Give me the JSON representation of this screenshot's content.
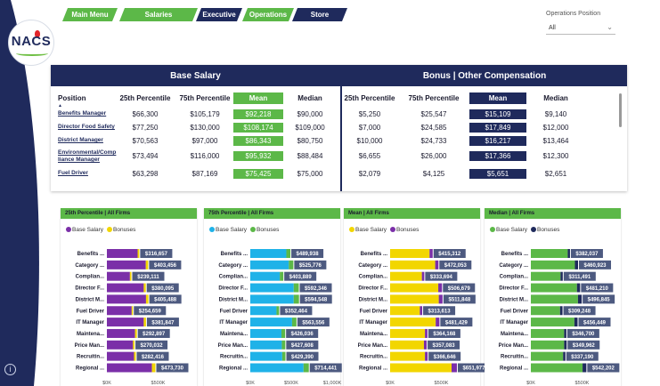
{
  "nav": [
    {
      "label": "Main Menu",
      "style": "green"
    },
    {
      "label": "Salaries",
      "style": "green"
    },
    {
      "label": "Executive",
      "style": "navy"
    },
    {
      "label": "Operations",
      "style": "green"
    },
    {
      "label": "Store",
      "style": "navy"
    }
  ],
  "logo": {
    "text": "NACS"
  },
  "filter": {
    "label": "Operations Position",
    "value": "All"
  },
  "table": {
    "base_title": "Base Salary",
    "bonus_title": "Bonus | Other Compensation",
    "position_header": "Position",
    "headers": [
      "25th Percentile",
      "75th Percentile",
      "Mean",
      "Median"
    ],
    "rows": [
      {
        "position": "Benefits Manager",
        "base": [
          "$66,300",
          "$105,179",
          "$92,218",
          "$90,000"
        ],
        "bonus": [
          "$5,250",
          "$25,547",
          "$15,109",
          "$9,140"
        ]
      },
      {
        "position": "Director Food Safety",
        "base": [
          "$77,250",
          "$130,000",
          "$108,174",
          "$109,000"
        ],
        "bonus": [
          "$7,000",
          "$24,585",
          "$17,849",
          "$12,000"
        ]
      },
      {
        "position": "District Manager",
        "base": [
          "$70,563",
          "$97,000",
          "$86,343",
          "$80,750"
        ],
        "bonus": [
          "$10,000",
          "$24,733",
          "$16,217",
          "$13,464"
        ]
      },
      {
        "position": "Environmental/Compliance Manager",
        "position_lines": [
          "Environmental/Comp",
          "liance Manager"
        ],
        "base": [
          "$73,494",
          "$116,000",
          "$95,932",
          "$88,484"
        ],
        "bonus": [
          "$6,655",
          "$26,000",
          "$17,366",
          "$12,300"
        ]
      },
      {
        "position": "Fuel Driver",
        "base": [
          "$63,298",
          "$87,169",
          "$75,425",
          "$75,000"
        ],
        "bonus": [
          "$2,079",
          "$4,125",
          "$5,651",
          "$2,651"
        ]
      }
    ]
  },
  "colors": {
    "navy": "#1f2a5c",
    "green": "#5cb848",
    "purple": "#7b2fa8",
    "yellow": "#f2d600",
    "cyan": "#1fb2e8",
    "label_bg": "#4d5a80"
  },
  "chart_data": [
    {
      "type": "bar",
      "title": "25th Percentile | All Firms",
      "legend": [
        "Base Salary",
        "Bonuses"
      ],
      "legend_colors": [
        "#7b2fa8",
        "#f2d600"
      ],
      "categories": [
        "Benefits ...",
        "Category ...",
        "Complian...",
        "Director F...",
        "District M...",
        "Fuel Driver",
        "IT Manager",
        "Maintena...",
        "Price Man...",
        "Recruitin...",
        "Regional ..."
      ],
      "series": [
        {
          "name": "Base Salary",
          "values": [
            300000,
            380000,
            225000,
            360000,
            382000,
            242000,
            360000,
            275000,
            255000,
            265000,
            440000
          ]
        },
        {
          "name": "Bonuses",
          "values": [
            16657,
            23456,
            14111,
            20095,
            23488,
            12659,
            21847,
            17897,
            15032,
            17416,
            33730
          ]
        }
      ],
      "labels": [
        "$316,657",
        "$403,456",
        "$239,111",
        "$380,095",
        "$405,488",
        "$254,659",
        "$381,847",
        "$292,897",
        "$270,032",
        "$282,416",
        "$473,730"
      ],
      "x_ticks": [
        "$0K",
        "$500K"
      ],
      "xlim": [
        0,
        800000
      ]
    },
    {
      "type": "bar",
      "title": "75th Percentile | All Firms",
      "legend": [
        "Base Salary",
        "Bonuses"
      ],
      "legend_colors": [
        "#1fb2e8",
        "#5cb848"
      ],
      "categories": [
        "Benefits ...",
        "Category ...",
        "Complian...",
        "Director F...",
        "District M...",
        "Fuel Driver",
        "IT Manager",
        "Maintena...",
        "Price Man...",
        "Recruitin...",
        "Regional ..."
      ],
      "series": [
        {
          "name": "Base Salary",
          "values": [
            440000,
            470000,
            360000,
            530000,
            530000,
            320000,
            510000,
            380000,
            385000,
            390000,
            650000
          ]
        },
        {
          "name": "Bonuses",
          "values": [
            49938,
            55776,
            43889,
            62346,
            64548,
            32464,
            53556,
            46036,
            42608,
            39390,
            64441
          ]
        }
      ],
      "labels": [
        "$489,938",
        "$525,776",
        "$403,889",
        "$592,346",
        "$594,548",
        "$352,464",
        "$563,556",
        "$426,036",
        "$427,608",
        "$429,390",
        "$714,441"
      ],
      "x_ticks": [
        "$0K",
        "$500K",
        "$1,000K"
      ],
      "xlim": [
        0,
        1000000
      ]
    },
    {
      "type": "bar",
      "title": "Mean | All Firms",
      "legend": [
        "Base Salary",
        "Bonuses"
      ],
      "legend_colors": [
        "#f2d600",
        "#7b2fa8"
      ],
      "categories": [
        "Benefits ...",
        "Category ...",
        "Complian...",
        "Director F...",
        "District M...",
        "Fuel Driver",
        "IT Manager",
        "Maintena...",
        "Price Man...",
        "Recruitin...",
        "Regional ..."
      ],
      "series": [
        {
          "name": "Base Salary",
          "values": [
            385000,
            440000,
            310000,
            470000,
            475000,
            290000,
            445000,
            340000,
            330000,
            340000,
            600000
          ]
        },
        {
          "name": "Bonuses",
          "values": [
            30312,
            32053,
            23694,
            36679,
            36847,
            23613,
            36429,
            24168,
            27083,
            26646,
            51977
          ]
        }
      ],
      "labels": [
        "$415,312",
        "$472,053",
        "$333,694",
        "$506,679",
        "$511,848",
        "$313,613",
        "$481,429",
        "$364,168",
        "$357,083",
        "$366,646",
        "$651,977"
      ],
      "x_ticks": [
        "$0K",
        "$500K"
      ],
      "xlim": [
        0,
        800000
      ]
    },
    {
      "type": "bar",
      "title": "Median | All Firms",
      "legend": [
        "Base Salary",
        "Bonuses"
      ],
      "legend_colors": [
        "#5cb848",
        "#1f2a5c"
      ],
      "categories": [
        "Benefits ...",
        "Category ...",
        "Complian...",
        "Director F...",
        "District M...",
        "Fuel Driver",
        "IT Manager",
        "Maintena...",
        "Price Man...",
        "Recruitin...",
        "Regional ..."
      ],
      "series": [
        {
          "name": "Base Salary",
          "values": [
            360000,
            430000,
            290000,
            450000,
            460000,
            285000,
            425000,
            325000,
            325000,
            315000,
            505000
          ]
        },
        {
          "name": "Bonuses",
          "values": [
            22037,
            30923,
            21491,
            31210,
            36845,
            24248,
            31449,
            21700,
            24962,
            22190,
            37202
          ]
        }
      ],
      "labels": [
        "$382,037",
        "$460,923",
        "$311,491",
        "$481,210",
        "$496,845",
        "$309,248",
        "$456,449",
        "$346,700",
        "$349,962",
        "$337,190",
        "$542,202"
      ],
      "x_ticks": [
        "$0K",
        "$500K"
      ],
      "xlim": [
        0,
        800000
      ]
    }
  ]
}
